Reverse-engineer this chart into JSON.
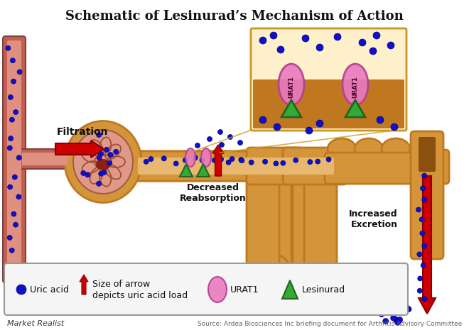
{
  "title": "Schematic of Lesinurad’s Mechanism of Action",
  "title_fontsize": 13,
  "background_color": "#ffffff",
  "source_text": "Source: Ardea Biosciences Inc briefing document for Arthritis Advisory Committee",
  "watermark": "Market Realist",
  "tubule_color": "#d4943a",
  "tubule_outer": "#c07820",
  "tubule_inner": "#e8b870",
  "blood_vessel_color": "#c06050",
  "blood_vessel_inner": "#e09080",
  "glom_outer": "#d4943a",
  "glom_inner": "#e09888",
  "glom_coil": "#a05030",
  "uric_acid_color": "#1010cc",
  "uric_acid_edge": "#000080",
  "arrow_color": "#cc0000",
  "arrow_edge": "#880000",
  "lesinurad_color": "#33aa33",
  "lesinurad_edge": "#226622",
  "urat1_color": "#e87abf",
  "urat1_edge": "#b04090",
  "inset_bg": "#fff0cc",
  "inset_floor": "#c07820",
  "inset_border": "#c89820",
  "filtration_label": "Filtration",
  "decreased_label": "Decreased\nReabsorption",
  "excretion_label": "Increased\nExcretion"
}
